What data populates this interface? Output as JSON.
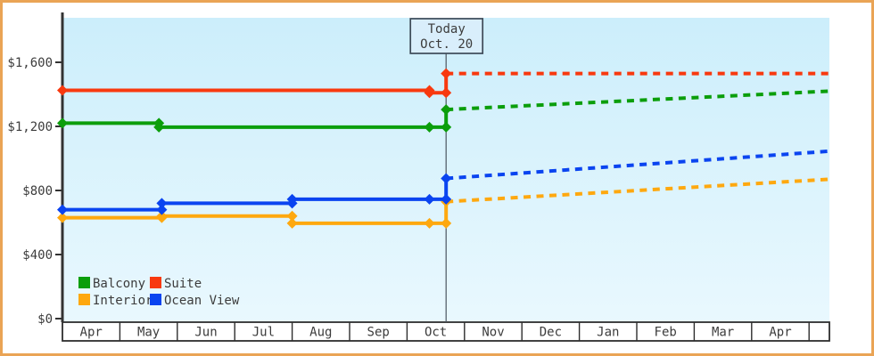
{
  "chart_data": {
    "type": "line",
    "title": "",
    "grid": false,
    "x_axis": {
      "unit": "month_index_from_Apr",
      "range": [
        0,
        13.35
      ],
      "months": [
        "Apr",
        "May",
        "Jun",
        "Jul",
        "Aug",
        "Sep",
        "Oct",
        "Nov",
        "Dec",
        "Jan",
        "Feb",
        "Mar",
        "Apr",
        ""
      ]
    },
    "y_axis": {
      "range": [
        0,
        1878
      ],
      "ticks": [
        {
          "label": "$1,600",
          "value": 1600
        },
        {
          "label": "$1,200",
          "value": 1200
        },
        {
          "label": "$800",
          "value": 800
        },
        {
          "label": "$400",
          "value": 400
        },
        {
          "label": "$0",
          "value": 0
        }
      ]
    },
    "today": {
      "line1": "Today",
      "line2": "Oct. 20",
      "x": 6.68
    },
    "series": [
      {
        "name": "Interior",
        "color": "#fea80f",
        "history": [
          [
            0,
            630
          ],
          [
            1.73,
            630
          ],
          [
            1.73,
            640
          ],
          [
            4.0,
            640
          ],
          [
            4.0,
            595
          ],
          [
            6.68,
            595
          ]
        ],
        "forecast": [
          [
            6.68,
            730
          ],
          [
            13.35,
            870
          ]
        ],
        "extra_markers": [
          [
            6.39,
            595
          ]
        ]
      },
      {
        "name": "Ocean View",
        "color": "#0a44f0",
        "history": [
          [
            0,
            680
          ],
          [
            1.73,
            680
          ],
          [
            1.73,
            720
          ],
          [
            4.0,
            720
          ],
          [
            4.0,
            745
          ],
          [
            6.68,
            745
          ]
        ],
        "forecast": [
          [
            6.68,
            875
          ],
          [
            13.35,
            1045
          ]
        ],
        "extra_markers": [
          [
            6.39,
            745
          ]
        ]
      },
      {
        "name": "Balcony",
        "color": "#0b9e0b",
        "history": [
          [
            0,
            1220
          ],
          [
            1.68,
            1220
          ],
          [
            1.68,
            1195
          ],
          [
            6.68,
            1195
          ]
        ],
        "forecast": [
          [
            6.68,
            1305
          ],
          [
            13.35,
            1420
          ]
        ],
        "extra_markers": [
          [
            6.39,
            1195
          ]
        ]
      },
      {
        "name": "Suite",
        "color": "#f8390f",
        "history": [
          [
            0,
            1425
          ],
          [
            6.39,
            1425
          ],
          [
            6.39,
            1410
          ],
          [
            6.68,
            1410
          ]
        ],
        "forecast": [
          [
            6.68,
            1530
          ],
          [
            13.35,
            1530
          ]
        ],
        "extra_markers": []
      }
    ],
    "legend": {
      "position": "bottom-left-inside-plot",
      "items": [
        {
          "label": "Balcony",
          "color": "#0b9e0b"
        },
        {
          "label": "Suite",
          "color": "#f8390f"
        },
        {
          "label": "Interior",
          "color": "#fea80f"
        },
        {
          "label": "Ocean View",
          "color": "#0a44f0"
        }
      ]
    },
    "colors": {
      "plot_bg_top": "#cceefb",
      "plot_bg_bottom": "#e9f8fe",
      "axis": "#333333",
      "month_row_border": "#2e2e2e",
      "month_row_fill": "#ffffff",
      "today_line": "#4a5560",
      "today_box_fill": "#d9eefb",
      "today_box_border": "#3d4a57",
      "frame_border": "#eaa455",
      "text": "#3c3c3c"
    }
  }
}
